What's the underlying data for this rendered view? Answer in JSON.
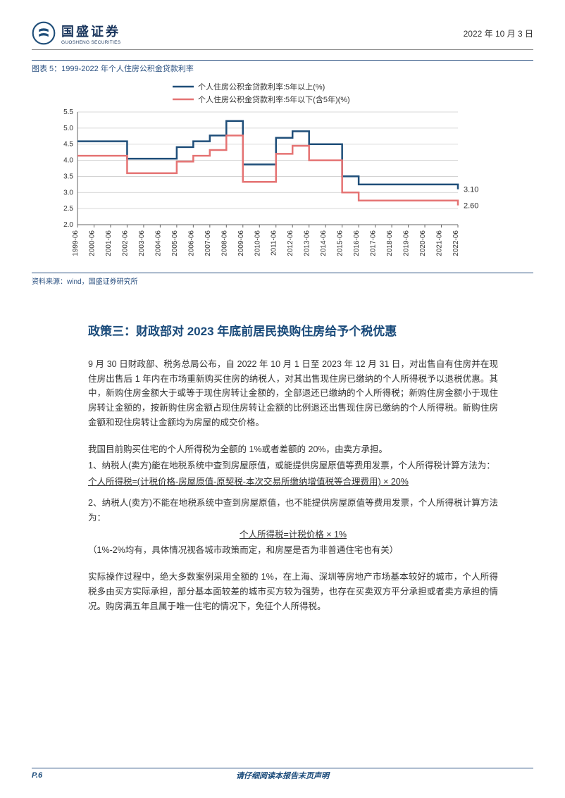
{
  "header": {
    "logo_cn": "国盛证券",
    "logo_en": "GUOSHENG SECURITIES",
    "date": "2022 年 10 月 3 日"
  },
  "chart": {
    "title": "图表 5：1999-2022 年个人住房公积金贷款利率",
    "source": "资料来源：wind，国盛证券研究所",
    "type": "line",
    "legend": {
      "series1": "个人住房公积金贷款利率:5年以上(%)",
      "series2": "个人住房公积金贷款利率:5年以下(含5年)(%)"
    },
    "colors": {
      "series1": "#1f4e79",
      "series2": "#e57373",
      "grid": "#cccccc",
      "axis": "#666666",
      "text": "#333333",
      "bg": "#ffffff"
    },
    "line_width": 2.5,
    "font_size_axis": 10,
    "font_size_legend": 11,
    "ylim": [
      2.0,
      5.5
    ],
    "yticks": [
      2.0,
      2.5,
      3.0,
      3.5,
      4.0,
      4.5,
      5.0,
      5.5
    ],
    "x_categories": [
      "1999-06",
      "2000-06",
      "2001-06",
      "2002-06",
      "2003-06",
      "2004-06",
      "2005-06",
      "2006-06",
      "2007-06",
      "2008-06",
      "2009-06",
      "2010-06",
      "2011-06",
      "2012-06",
      "2013-06",
      "2014-06",
      "2015-06",
      "2016-06",
      "2017-06",
      "2018-06",
      "2019-06",
      "2020-06",
      "2021-06",
      "2022-06"
    ],
    "series1_values": [
      4.59,
      4.59,
      4.59,
      4.05,
      4.05,
      4.05,
      4.41,
      4.59,
      4.77,
      5.22,
      3.87,
      3.87,
      4.7,
      4.9,
      4.5,
      4.5,
      3.5,
      3.25,
      3.25,
      3.25,
      3.25,
      3.25,
      3.25,
      3.1
    ],
    "series2_values": [
      4.14,
      4.14,
      4.14,
      3.6,
      3.6,
      3.6,
      3.96,
      4.14,
      4.32,
      4.77,
      3.33,
      3.33,
      4.2,
      4.45,
      4.0,
      4.0,
      3.0,
      2.75,
      2.75,
      2.75,
      2.75,
      2.75,
      2.75,
      2.6
    ],
    "end_labels": {
      "series1": "3.10",
      "series2": "2.60"
    }
  },
  "section": {
    "heading": "政策三：财政部对 2023 年底前居民换购住房给予个税优惠",
    "para1": "9 月 30 日财政部、税务总局公布，自 2022 年 10 月 1 日至 2023 年 12 月 31 日，对出售自有住房并在现住房出售后 1 年内在市场重新购买住房的纳税人，对其出售现住房已缴纳的个人所得税予以退税优惠。其中，新购住房金额大于或等于现住房转让金额的，全部退还已缴纳的个人所得税；新购住房金额小于现住房转让金额的，按新购住房金额占现住房转让金额的比例退还出售现住房已缴纳的个人所得税。新购住房金额和现住房转让金额均为房屋的成交价格。",
    "para2": "我国目前购买住宅的个人所得税为全额的 1%或者差额的 20%，由卖方承担。",
    "item1": "1、纳税人(卖方)能在地税系统中查到房屋原值，或能提供房屋原值等费用发票，个人所得税计算方法为：",
    "formula1": "个人所得税=(计税价格-房屋原值-原契税-本次交易所缴纳增值税等合理费用) × 20%",
    "item2": "2、纳税人(卖方)不能在地税系统中查到房屋原值，也不能提供房屋原值等费用发票，个人所得税计算方法为：",
    "formula2": "个人所得税=计税价格 × 1%",
    "note": "（1%-2%均有，具体情况视各城市政策而定，和房屋是否为非普通住宅也有关）",
    "para3": "实际操作过程中，绝大多数案例采用全额的 1%，在上海、深圳等房地产市场基本较好的城市，个人所得税多由买方实际承担，部分基本面较差的城市买方较为强势，也存在买卖双方平分承担或者卖方承担的情况。购房满五年且属于唯一住宅的情况下，免征个人所得税。"
  },
  "footer": {
    "page": "P.6",
    "note": "请仔细阅读本报告末页声明"
  }
}
